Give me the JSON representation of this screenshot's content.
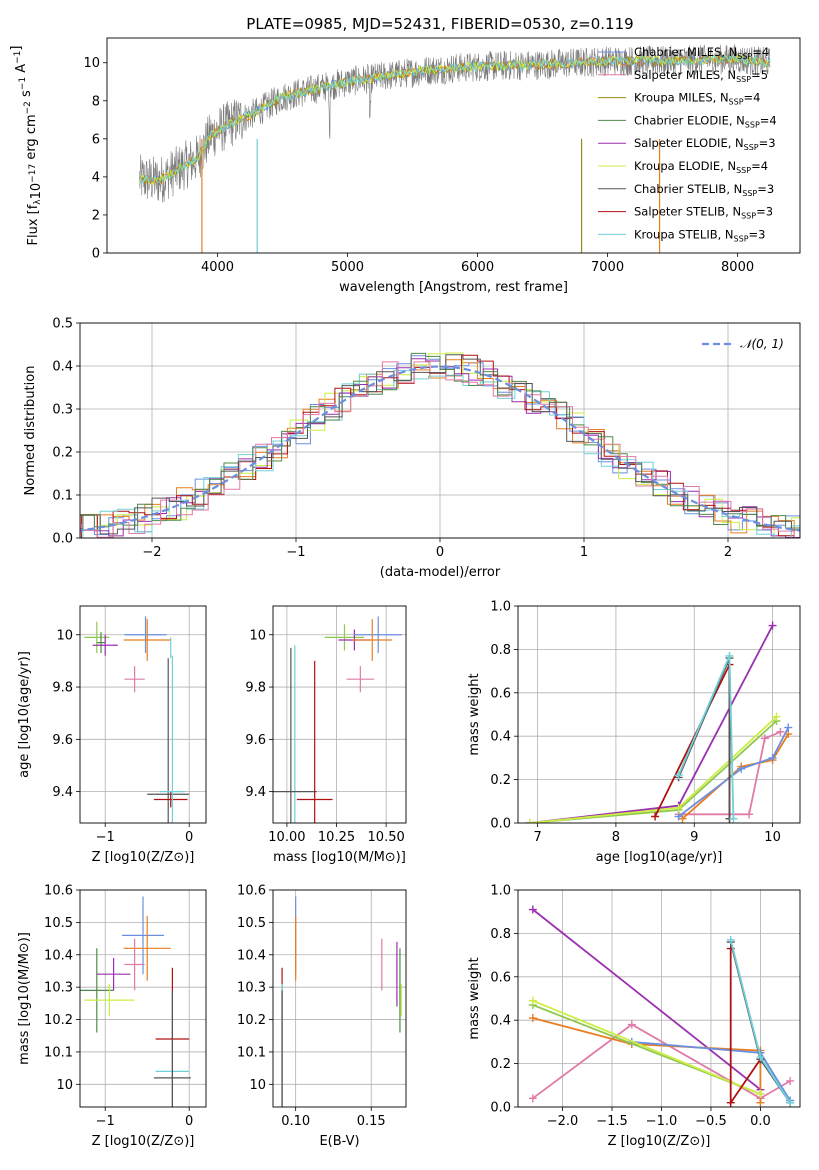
{
  "figure_title": "PLATE=0985, MJD=52431, FIBERID=0530, z=0.119",
  "colors": {
    "Chabrier MILES": "#6b8fe0",
    "Salpeter MILES": "#e87e20",
    "Kroupa MILES": "#9a8a10",
    "Chabrier ELODIE": "#4f8a4a",
    "Salpeter ELODIE": "#9a2fb0",
    "Kroupa ELODIE": "#ccee44",
    "Chabrier STELIB": "#555555",
    "Salpeter STELIB": "#b01010",
    "Kroupa STELIB": "#6fd0d8",
    "extra": "#e07aa8",
    "extra2": "#90c850"
  },
  "chart_data": [
    {
      "type": "line",
      "panel": "spectrum",
      "xlabel": "wavelength [Angstrom, rest frame]",
      "ylabel": "Flux [f_λ10^-17 erg cm^-2 s^-1 A^-1]",
      "xlim": [
        3150,
        8480
      ],
      "ylim": [
        0,
        11.3
      ],
      "xticks": [
        4000,
        5000,
        6000,
        7000,
        8000
      ],
      "yticks": [
        0,
        2,
        4,
        6,
        8,
        10
      ],
      "grid": false,
      "legend_position": "right",
      "legend": [
        {
          "label": "Chabrier MILES, N",
          "sub": "SSP",
          "tail": "=4",
          "color_key": "Chabrier MILES"
        },
        {
          "label": "Salpeter MILES, N",
          "sub": "SSP",
          "tail": "=5",
          "color_key": "extra"
        },
        {
          "label": "Kroupa MILES, N",
          "sub": "SSP",
          "tail": "=4",
          "color_key": "Kroupa MILES"
        },
        {
          "label": "Chabrier ELODIE, N",
          "sub": "SSP",
          "tail": "=4",
          "color_key": "Chabrier ELODIE"
        },
        {
          "label": "Salpeter ELODIE, N",
          "sub": "SSP",
          "tail": "=3",
          "color_key": "Salpeter ELODIE"
        },
        {
          "label": "Kroupa ELODIE, N",
          "sub": "SSP",
          "tail": "=4",
          "color_key": "Kroupa ELODIE"
        },
        {
          "label": "Chabrier STELIB, N",
          "sub": "SSP",
          "tail": "=3",
          "color_key": "Chabrier STELIB"
        },
        {
          "label": "Salpeter STELIB, N",
          "sub": "SSP",
          "tail": "=3",
          "color_key": "Salpeter STELIB"
        },
        {
          "label": "Kroupa STELIB, N",
          "sub": "SSP",
          "tail": "=3",
          "color_key": "Kroupa STELIB"
        }
      ],
      "continuum": [
        [
          3400,
          3.9
        ],
        [
          3550,
          3.8
        ],
        [
          3700,
          4.4
        ],
        [
          3850,
          5.0
        ],
        [
          3950,
          6.2
        ],
        [
          4100,
          6.8
        ],
        [
          4300,
          7.4
        ],
        [
          4500,
          8.2
        ],
        [
          4800,
          8.7
        ],
        [
          5000,
          9.0
        ],
        [
          5300,
          9.3
        ],
        [
          5600,
          9.6
        ],
        [
          6000,
          9.8
        ],
        [
          6500,
          9.9
        ],
        [
          7000,
          10.1
        ],
        [
          7500,
          10.1
        ],
        [
          8000,
          10.2
        ],
        [
          8250,
          10.0
        ]
      ]
    },
    {
      "type": "step",
      "panel": "residuals",
      "xlabel": "(data-model)/error",
      "ylabel": "Normed distribution",
      "xlim": [
        -2.5,
        2.5
      ],
      "ylim": [
        0,
        0.5
      ],
      "xticks": [
        -2,
        -1,
        0,
        1,
        2
      ],
      "xticklabels": [
        "−2",
        "−1",
        "0",
        "1",
        "2"
      ],
      "yticks": [
        0.0,
        0.1,
        0.2,
        0.3,
        0.4,
        0.5
      ],
      "grid": true,
      "legend_position": "top-right",
      "gaussian_label": "𝒩(0, 1)",
      "gaussian_sigma": 1
    },
    {
      "type": "scatter",
      "panel": "age-Z",
      "xlabel": "Z [log10(Z/Z⊙)]",
      "ylabel": "age  [log10(age/yr)]",
      "xlim": [
        -1.3,
        0.2
      ],
      "ylim": [
        9.28,
        10.11
      ],
      "xticks": [
        -1,
        0
      ],
      "xticklabels": [
        "−1",
        "0"
      ],
      "yticks": [
        9.4,
        9.6,
        9.8,
        10.0
      ],
      "grid": true,
      "points": [
        {
          "x": -1.1,
          "y": 9.99,
          "xerr": 0.15,
          "yerr": 0.06,
          "color_key": "extra2"
        },
        {
          "x": -1.05,
          "y": 9.97,
          "xerr": 0.05,
          "yerr": 0.04,
          "color_key": "Chabrier ELODIE"
        },
        {
          "x": -1.0,
          "y": 9.96,
          "xerr": 0.15,
          "yerr": 0.04,
          "color_key": "Salpeter ELODIE"
        },
        {
          "x": -0.52,
          "y": 10.0,
          "xerr": 0.25,
          "yerr": 0.07,
          "color_key": "Chabrier MILES"
        },
        {
          "x": -0.5,
          "y": 9.98,
          "xerr": 0.28,
          "yerr": 0.08,
          "color_key": "Salpeter MILES"
        },
        {
          "x": -0.65,
          "y": 9.83,
          "xerr": 0.12,
          "yerr": 0.05,
          "color_key": "extra"
        },
        {
          "x": -0.22,
          "y": 9.95,
          "xerr": 0.0,
          "yerr": 0.04,
          "color_key": "Kroupa STELIB"
        },
        {
          "x": -0.25,
          "y": 9.39,
          "xerr": 0.25,
          "yerr": 0.52,
          "color_key": "Chabrier STELIB"
        },
        {
          "x": -0.22,
          "y": 9.37,
          "xerr": 0.2,
          "yerr": 0.03,
          "color_key": "Salpeter STELIB"
        },
        {
          "x": -0.2,
          "y": 9.4,
          "xerr": 0.15,
          "yerr": 0.52,
          "color_key": "Kroupa STELIB"
        }
      ]
    },
    {
      "type": "scatter",
      "panel": "age-mass",
      "xlabel": "mass [log10(M/M⊙)]",
      "xlim": [
        9.93,
        10.6
      ],
      "ylim": [
        9.28,
        10.11
      ],
      "xticks": [
        10.0,
        10.25,
        10.5
      ],
      "xticklabels": [
        "10.00",
        "10.25",
        "10.50"
      ],
      "yticks": [
        9.4,
        9.6,
        9.8,
        10.0
      ],
      "grid": true,
      "points": [
        {
          "x": 10.29,
          "y": 9.99,
          "xerr": 0.1,
          "yerr": 0.05,
          "color_key": "extra2"
        },
        {
          "x": 10.34,
          "y": 9.98,
          "xerr": 0.08,
          "yerr": 0.04,
          "color_key": "Salpeter ELODIE"
        },
        {
          "x": 10.46,
          "y": 10.0,
          "xerr": 0.12,
          "yerr": 0.07,
          "color_key": "Chabrier MILES"
        },
        {
          "x": 10.43,
          "y": 9.98,
          "xerr": 0.1,
          "yerr": 0.08,
          "color_key": "Salpeter MILES"
        },
        {
          "x": 10.37,
          "y": 9.83,
          "xerr": 0.07,
          "yerr": 0.05,
          "color_key": "extra"
        },
        {
          "x": 10.04,
          "y": 9.4,
          "xerr": 0.0,
          "yerr": 0.56,
          "color_key": "Kroupa STELIB"
        },
        {
          "x": 10.02,
          "y": 9.4,
          "xerr": 0.13,
          "yerr": 0.55,
          "color_key": "Chabrier STELIB"
        },
        {
          "x": 10.14,
          "y": 9.37,
          "xerr": 0.09,
          "yerr": 0.53,
          "color_key": "Salpeter STELIB"
        }
      ]
    },
    {
      "type": "line",
      "panel": "mass-weight-age",
      "xlabel": "age  [log10(age/yr)]",
      "ylabel": "mass weight",
      "xlim": [
        6.75,
        10.35
      ],
      "ylim": [
        0,
        1.0
      ],
      "xticks": [
        7,
        8,
        9,
        10
      ],
      "yticks": [
        0.0,
        0.2,
        0.4,
        0.6,
        0.8,
        1.0
      ],
      "grid": true,
      "series": [
        {
          "color_key": "Salpeter ELODIE",
          "x": [
            6.9,
            8.8,
            10.0
          ],
          "y": [
            0.0,
            0.08,
            0.91
          ]
        },
        {
          "color_key": "extra",
          "x": [
            8.8,
            9.7,
            9.9,
            10.1
          ],
          "y": [
            0.04,
            0.04,
            0.39,
            0.42
          ]
        },
        {
          "color_key": "Salpeter MILES",
          "x": [
            8.85,
            9.6,
            10.0,
            10.2
          ],
          "y": [
            0.02,
            0.26,
            0.29,
            0.41
          ]
        },
        {
          "color_key": "Chabrier MILES",
          "x": [
            8.8,
            9.6,
            10.0,
            10.2
          ],
          "y": [
            0.03,
            0.25,
            0.3,
            0.44
          ]
        },
        {
          "color_key": "extra2",
          "x": [
            6.9,
            8.8,
            10.05
          ],
          "y": [
            0.0,
            0.06,
            0.47
          ]
        },
        {
          "color_key": "Kroupa ELODIE",
          "x": [
            6.9,
            8.8,
            10.05
          ],
          "y": [
            0.0,
            0.07,
            0.49
          ]
        },
        {
          "color_key": "Salpeter STELIB",
          "x": [
            8.5,
            9.45,
            9.45
          ],
          "y": [
            0.03,
            0.73,
            0.02
          ]
        },
        {
          "color_key": "Chabrier STELIB",
          "x": [
            8.8,
            9.45,
            9.45
          ],
          "y": [
            0.21,
            0.76,
            0.02
          ]
        },
        {
          "color_key": "Kroupa STELIB",
          "x": [
            8.8,
            9.45,
            9.5
          ],
          "y": [
            0.22,
            0.77,
            0.02
          ]
        }
      ]
    },
    {
      "type": "scatter",
      "panel": "mass-Z",
      "xlabel": "Z [log10(Z/Z⊙)]",
      "ylabel": "mass [log10(M/M⊙)]",
      "xlim": [
        -1.3,
        0.2
      ],
      "ylim": [
        9.93,
        10.6
      ],
      "xticks": [
        -1,
        0
      ],
      "xticklabels": [
        "−1",
        "0"
      ],
      "yticks": [
        10.0,
        10.1,
        10.2,
        10.3,
        10.4,
        10.5,
        10.6
      ],
      "grid": true,
      "points": [
        {
          "x": -1.1,
          "y": 10.29,
          "xerr": 0.2,
          "yerr": 0.13,
          "color_key": "Chabrier ELODIE"
        },
        {
          "x": -0.95,
          "y": 10.26,
          "xerr": 0.3,
          "yerr": 0.05,
          "color_key": "Kroupa ELODIE"
        },
        {
          "x": -0.9,
          "y": 10.34,
          "xerr": 0.2,
          "yerr": 0.05,
          "color_key": "Salpeter ELODIE"
        },
        {
          "x": -0.55,
          "y": 10.46,
          "xerr": 0.25,
          "yerr": 0.12,
          "color_key": "Chabrier MILES"
        },
        {
          "x": -0.5,
          "y": 10.42,
          "xerr": 0.28,
          "yerr": 0.1,
          "color_key": "Salpeter MILES"
        },
        {
          "x": -0.65,
          "y": 10.37,
          "xerr": 0.12,
          "yerr": 0.08,
          "color_key": "extra"
        },
        {
          "x": -0.2,
          "y": 10.14,
          "xerr": 0.2,
          "yerr": 0.22,
          "color_key": "Salpeter STELIB"
        },
        {
          "x": -0.2,
          "y": 10.04,
          "xerr": 0.2,
          "yerr": 0.0,
          "color_key": "Kroupa STELIB"
        },
        {
          "x": -0.2,
          "y": 10.02,
          "xerr": 0.22,
          "yerr": 0.27,
          "color_key": "Chabrier STELIB"
        }
      ]
    },
    {
      "type": "scatter",
      "panel": "mass-EBV",
      "xlabel": "E(B-V)",
      "xlim": [
        0.085,
        0.173
      ],
      "ylim": [
        9.93,
        10.6
      ],
      "xticks": [
        0.1,
        0.15
      ],
      "xticklabels": [
        "0.10",
        "0.15"
      ],
      "yticks": [
        10.0,
        10.1,
        10.2,
        10.3,
        10.4,
        10.5,
        10.6
      ],
      "grid": true,
      "points": [
        {
          "x": 0.1,
          "y": 10.46,
          "xerr": 0.0,
          "yerr": 0.12,
          "color_key": "Chabrier MILES"
        },
        {
          "x": 0.1,
          "y": 10.42,
          "xerr": 0.0,
          "yerr": 0.1,
          "color_key": "Salpeter MILES"
        },
        {
          "x": 0.091,
          "y": 10.14,
          "xerr": 0.0,
          "yerr": 0.22,
          "color_key": "Salpeter STELIB"
        },
        {
          "x": 0.091,
          "y": 10.04,
          "xerr": 0.0,
          "yerr": 0.27,
          "color_key": "Kroupa STELIB"
        },
        {
          "x": 0.091,
          "y": 10.02,
          "xerr": 0.0,
          "yerr": 0.27,
          "color_key": "Chabrier STELIB"
        },
        {
          "x": 0.157,
          "y": 10.37,
          "xerr": 0.0,
          "yerr": 0.08,
          "color_key": "extra"
        },
        {
          "x": 0.167,
          "y": 10.34,
          "xerr": 0.0,
          "yerr": 0.1,
          "color_key": "Salpeter ELODIE"
        },
        {
          "x": 0.169,
          "y": 10.29,
          "xerr": 0.0,
          "yerr": 0.13,
          "color_key": "Chabrier ELODIE"
        },
        {
          "x": 0.17,
          "y": 10.26,
          "xerr": 0.0,
          "yerr": 0.05,
          "color_key": "Kroupa ELODIE"
        }
      ]
    },
    {
      "type": "line",
      "panel": "mass-weight-Z",
      "xlabel": "Z [log10(Z/Z⊙)]",
      "ylabel": "mass weight",
      "xlim": [
        -2.45,
        0.4
      ],
      "ylim": [
        0,
        1.0
      ],
      "xticks": [
        -2.0,
        -1.5,
        -1.0,
        -0.5,
        0.0
      ],
      "xticklabels": [
        "−2.0",
        "−1.5",
        "−1.0",
        "−0.5",
        "0.0"
      ],
      "yticks": [
        0.0,
        0.2,
        0.4,
        0.6,
        0.8,
        1.0
      ],
      "grid": true,
      "series": [
        {
          "color_key": "Salpeter ELODIE",
          "x": [
            -2.3,
            0.0
          ],
          "y": [
            0.91,
            0.08
          ]
        },
        {
          "color_key": "extra",
          "x": [
            -2.3,
            -1.3,
            0.0,
            0.3
          ],
          "y": [
            0.04,
            0.38,
            0.04,
            0.12
          ]
        },
        {
          "color_key": "Salpeter MILES",
          "x": [
            -2.3,
            -1.3,
            0.0,
            0.0
          ],
          "y": [
            0.41,
            0.29,
            0.26,
            0.02
          ]
        },
        {
          "color_key": "Chabrier MILES",
          "x": [
            -1.3,
            0.0,
            0.3
          ],
          "y": [
            0.3,
            0.25,
            0.03
          ]
        },
        {
          "color_key": "extra2",
          "x": [
            -2.3,
            0.0
          ],
          "y": [
            0.47,
            0.06
          ]
        },
        {
          "color_key": "Kroupa ELODIE",
          "x": [
            -2.3,
            0.0
          ],
          "y": [
            0.49,
            0.06
          ]
        },
        {
          "color_key": "Salpeter STELIB",
          "x": [
            -0.3,
            -0.3,
            0.0
          ],
          "y": [
            0.73,
            0.02,
            0.22
          ]
        },
        {
          "color_key": "Chabrier STELIB",
          "x": [
            -0.3,
            0.0,
            0.3
          ],
          "y": [
            0.76,
            0.22,
            0.02
          ]
        },
        {
          "color_key": "Kroupa STELIB",
          "x": [
            -0.3,
            0.0,
            0.3
          ],
          "y": [
            0.77,
            0.23,
            0.02
          ]
        }
      ]
    }
  ]
}
